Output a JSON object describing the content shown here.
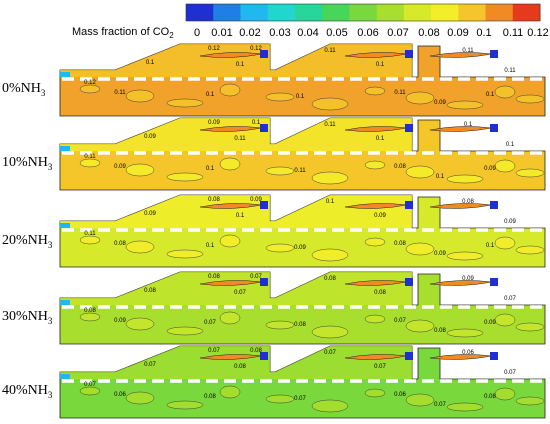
{
  "legend": {
    "title_main": "Mass fraction of CO",
    "title_sub": "2",
    "ticks": [
      "0",
      "0.01",
      "0.02",
      "0.03",
      "0.04",
      "0.05",
      "0.06",
      "0.07",
      "0.08",
      "0.09",
      "0.1",
      "0.11",
      "0.12"
    ],
    "colors": [
      "#1f2fd1",
      "#1f7fe6",
      "#1fb8ef",
      "#22d6d0",
      "#27d69a",
      "#45d65a",
      "#79d83c",
      "#a8df2e",
      "#d6ea2b",
      "#f4ee2a",
      "#f6c52b",
      "#f28a24",
      "#e63a1c"
    ]
  },
  "panels": [
    {
      "label": "0%NH",
      "sub": "3",
      "base_color": "#f0a22a",
      "top_color": "#f6c52b",
      "contour_labels": [
        "0.12",
        "0.12",
        "0.11",
        "0.11",
        "0.1",
        "0.1",
        "0.1",
        "0.11",
        "0.1",
        "0.1",
        "0.11",
        "0.09",
        "0.1",
        "0.12",
        "0.11"
      ]
    },
    {
      "label": "10%NH",
      "sub": "3",
      "base_color": "#f4c62a",
      "top_color": "#f4ee2a",
      "contour_labels": [
        "0.09",
        "0.1",
        "0.11",
        "0.1",
        "0.09",
        "0.11",
        "0.1",
        "0.09",
        "0.1",
        "0.11",
        "0.08",
        "0.1",
        "0.09",
        "0.11",
        "0.1"
      ]
    },
    {
      "label": "20%NH",
      "sub": "3",
      "base_color": "#d6ea2b",
      "top_color": "#f4ee2a",
      "contour_labels": [
        "0.08",
        "0.09",
        "0.1",
        "0.08",
        "0.09",
        "0.1",
        "0.09",
        "0.08",
        "0.1",
        "0.09",
        "0.08",
        "0.09",
        "0.1",
        "0.11",
        "0.09"
      ]
    },
    {
      "label": "30%NH",
      "sub": "3",
      "base_color": "#a8df2e",
      "top_color": "#c6e72c",
      "contour_labels": [
        "0.08",
        "0.07",
        "0.08",
        "0.09",
        "0.08",
        "0.07",
        "0.08",
        "0.09",
        "0.07",
        "0.08",
        "0.07",
        "0.08",
        "0.09",
        "0.08",
        "0.07"
      ]
    },
    {
      "label": "40%NH",
      "sub": "3",
      "base_color": "#79d83c",
      "top_color": "#a8df2e",
      "contour_labels": [
        "0.07",
        "0.08",
        "0.07",
        "0.06",
        "0.07",
        "0.08",
        "0.07",
        "0.06",
        "0.08",
        "0.07",
        "0.06",
        "0.07",
        "0.08",
        "0.07",
        "0.07"
      ]
    }
  ]
}
